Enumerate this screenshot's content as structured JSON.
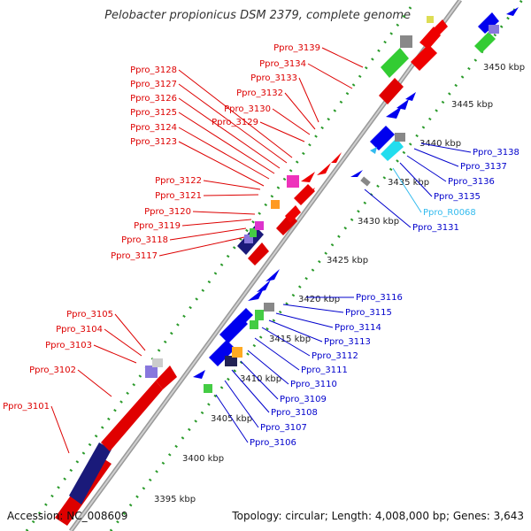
{
  "header": {
    "title": "Pelobacter propionicus DSM 2379, complete genome"
  },
  "footer": {
    "accession": "Accession: NC_008609",
    "topology": "Topology: circular; Length: 4,008,000 bp; Genes: 3,643"
  },
  "kbp_labels": [
    "3395 kbp",
    "3400 kbp",
    "3405 kbp",
    "3410 kbp",
    "3415 kbp",
    "3420 kbp",
    "3425 kbp",
    "3430 kbp",
    "3435 kbp",
    "3440 kbp",
    "3445 kbp",
    "3450 kbp"
  ],
  "gene_labels_left": [
    "Ppro_3139",
    "Ppro_3134",
    "Ppro_3133",
    "Ppro_3132",
    "Ppro_3130",
    "Ppro_3129",
    "Ppro_3128",
    "Ppro_3127",
    "Ppro_3126",
    "Ppro_3125",
    "Ppro_3124",
    "Ppro_3123",
    "Ppro_3122",
    "Ppro_3121",
    "Ppro_3120",
    "Ppro_3119",
    "Ppro_3118",
    "Ppro_3117",
    "Ppro_3105",
    "Ppro_3104",
    "Ppro_3103",
    "Ppro_3102",
    "Ppro_3101"
  ],
  "gene_labels_right": [
    "Ppro_3138",
    "Ppro_3137",
    "Ppro_3136",
    "Ppro_3135",
    "Ppro_R0068",
    "Ppro_3131",
    "Ppro_3116",
    "Ppro_3115",
    "Ppro_3114",
    "Ppro_3113",
    "Ppro_3112",
    "Ppro_3111",
    "Ppro_3110",
    "Ppro_3109",
    "Ppro_3108",
    "Ppro_3107",
    "Ppro_3106"
  ],
  "colors": {
    "left_label": "#dd0000",
    "right_label": "#0000cc",
    "rna_label": "#33bbee",
    "backbone": "#888888",
    "tick": "#22aa22"
  }
}
